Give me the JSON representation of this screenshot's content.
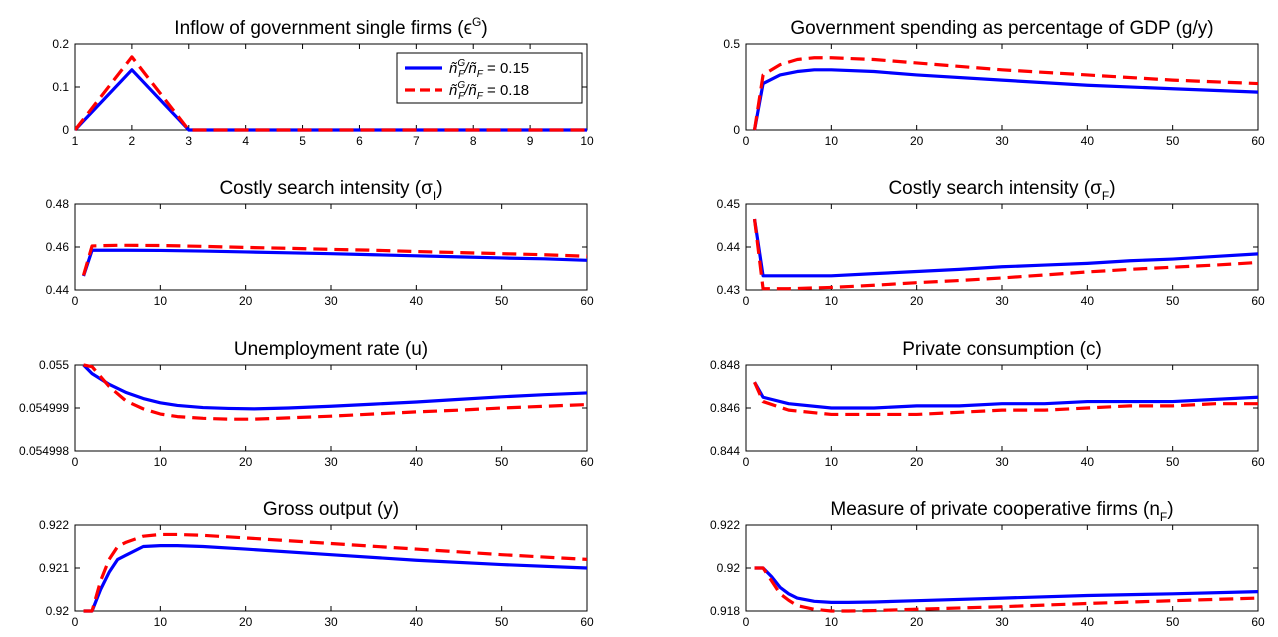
{
  "colors": {
    "series_1": "#0000FF",
    "series_2": "#FF0000",
    "axis": "#000000",
    "background": "#FFFFFF"
  },
  "legend": {
    "placement": "top-right of first panel",
    "entries": [
      {
        "label_base": "ñ",
        "label_sup": "G",
        "label_sub": "F",
        "label_mid": "/ñ",
        "label_sub2": "F",
        "label_tail": " = 0.15"
      },
      {
        "label_base": "ñ",
        "label_sup": "G",
        "label_sub": "F",
        "label_mid": "/ñ",
        "label_sub2": "F",
        "label_tail": " = 0.18"
      }
    ]
  },
  "chart_data": [
    {
      "type": "line",
      "title": "Inflow of government single firms (ϵ",
      "title_sup": "G",
      "title_end": ")",
      "xlim": [
        1,
        10
      ],
      "ylim": [
        0,
        0.2
      ],
      "xticks": [
        "1",
        "2",
        "3",
        "4",
        "5",
        "6",
        "7",
        "8",
        "9",
        "10"
      ],
      "yticks": [
        "0",
        "0.1",
        "0.2"
      ],
      "series": [
        {
          "name": "ñGF/ñF = 0.15",
          "x": [
            1,
            2,
            3,
            4,
            5,
            6,
            7,
            8,
            9,
            10
          ],
          "y": [
            0,
            0.14,
            0,
            0,
            0,
            0,
            0,
            0,
            0,
            0
          ]
        },
        {
          "name": "ñGF/ñF = 0.18",
          "x": [
            1,
            2,
            3,
            4,
            5,
            6,
            7,
            8,
            9,
            10
          ],
          "y": [
            0,
            0.17,
            0,
            0,
            0,
            0,
            0,
            0,
            0,
            0
          ]
        }
      ]
    },
    {
      "type": "line",
      "title": "Government spending as percentage of GDP (g/y)",
      "xlim": [
        0,
        60
      ],
      "ylim": [
        0,
        0.5
      ],
      "xticks": [
        "0",
        "10",
        "20",
        "30",
        "40",
        "50",
        "60"
      ],
      "yticks": [
        "0",
        "0.5"
      ],
      "series": [
        {
          "x": [
            1,
            2,
            4,
            6,
            8,
            10,
            15,
            20,
            30,
            40,
            50,
            60
          ],
          "y": [
            0,
            0.27,
            0.32,
            0.34,
            0.35,
            0.35,
            0.34,
            0.32,
            0.29,
            0.26,
            0.24,
            0.22
          ]
        },
        {
          "x": [
            1,
            2,
            4,
            6,
            8,
            10,
            15,
            20,
            30,
            40,
            50,
            60
          ],
          "y": [
            0,
            0.32,
            0.38,
            0.41,
            0.42,
            0.42,
            0.41,
            0.39,
            0.35,
            0.32,
            0.29,
            0.27
          ]
        }
      ]
    },
    {
      "type": "line",
      "title": "Costly search intensity (σ",
      "title_sub": "I",
      "title_end": ")",
      "xlim": [
        0,
        60
      ],
      "ylim": [
        0.44,
        0.48
      ],
      "xticks": [
        "0",
        "10",
        "20",
        "30",
        "40",
        "50",
        "60"
      ],
      "yticks": [
        "0.44",
        "0.46",
        "0.48"
      ],
      "series": [
        {
          "x": [
            1,
            2,
            5,
            10,
            15,
            20,
            25,
            30,
            35,
            40,
            45,
            50,
            55,
            60
          ],
          "y": [
            0.4465,
            0.4585,
            0.4585,
            0.4584,
            0.4581,
            0.4577,
            0.4573,
            0.4569,
            0.4564,
            0.4559,
            0.4554,
            0.4549,
            0.4545,
            0.4538
          ]
        },
        {
          "x": [
            1,
            2,
            5,
            10,
            15,
            20,
            25,
            30,
            35,
            40,
            45,
            50,
            55,
            60
          ],
          "y": [
            0.4468,
            0.4605,
            0.4608,
            0.4607,
            0.4603,
            0.4598,
            0.4594,
            0.4589,
            0.4585,
            0.4579,
            0.4574,
            0.4569,
            0.4564,
            0.4557
          ]
        }
      ]
    },
    {
      "type": "line",
      "title": "Costly search intensity (σ",
      "title_sub": "F",
      "title_end": ")",
      "xlim": [
        0,
        60
      ],
      "ylim": [
        0.43,
        0.45
      ],
      "xticks": [
        "0",
        "10",
        "20",
        "30",
        "40",
        "50",
        "60"
      ],
      "yticks": [
        "0.43",
        "0.44",
        "0.45"
      ],
      "series": [
        {
          "x": [
            1,
            2,
            5,
            10,
            15,
            20,
            25,
            30,
            35,
            40,
            45,
            50,
            55,
            60
          ],
          "y": [
            0.4465,
            0.4333,
            0.4333,
            0.4333,
            0.4338,
            0.4343,
            0.4348,
            0.4354,
            0.4358,
            0.4362,
            0.4368,
            0.4372,
            0.4378,
            0.4384
          ]
        },
        {
          "x": [
            1,
            2,
            5,
            10,
            15,
            20,
            25,
            30,
            35,
            40,
            45,
            50,
            55,
            60
          ],
          "y": [
            0.4465,
            0.4303,
            0.4303,
            0.4306,
            0.4311,
            0.4317,
            0.4322,
            0.4328,
            0.4335,
            0.4342,
            0.4348,
            0.4353,
            0.4358,
            0.4364
          ]
        }
      ]
    },
    {
      "type": "line",
      "title": "Unemployment rate (u)",
      "xlim": [
        0,
        60
      ],
      "ylim": [
        0.054998,
        0.055
      ],
      "xticks": [
        "0",
        "10",
        "20",
        "30",
        "40",
        "50",
        "60"
      ],
      "yticks": [
        "0.054998",
        "0.054999",
        "0.055"
      ],
      "series": [
        {
          "x": [
            1,
            2,
            4,
            6,
            8,
            10,
            12,
            15,
            18,
            21,
            25,
            30,
            35,
            40,
            45,
            50,
            55,
            60
          ],
          "y": [
            0.055,
            0.0549998,
            0.05499955,
            0.05499936,
            0.05499922,
            0.05499912,
            0.05499906,
            0.05499901,
            0.05499899,
            0.05499898,
            0.054999,
            0.05499904,
            0.05499909,
            0.05499914,
            0.0549992,
            0.05499926,
            0.05499931,
            0.05499935
          ]
        },
        {
          "x": [
            1,
            2,
            4,
            6,
            8,
            10,
            12,
            15,
            18,
            21,
            25,
            30,
            35,
            40,
            45,
            50,
            55,
            60
          ],
          "y": [
            0.055,
            0.05499996,
            0.0549995,
            0.05499916,
            0.05499898,
            0.05499886,
            0.0549988,
            0.05499876,
            0.05499874,
            0.05499874,
            0.05499877,
            0.05499881,
            0.05499886,
            0.05499891,
            0.05499895,
            0.054999,
            0.05499904,
            0.05499908
          ]
        }
      ]
    },
    {
      "type": "line",
      "title": "Private consumption (c)",
      "xlim": [
        0,
        60
      ],
      "ylim": [
        0.844,
        0.848
      ],
      "xticks": [
        "0",
        "10",
        "20",
        "30",
        "40",
        "50",
        "60"
      ],
      "yticks": [
        "0.844",
        "0.846",
        "0.848"
      ],
      "series": [
        {
          "x": [
            1,
            2,
            5,
            10,
            15,
            20,
            25,
            30,
            35,
            40,
            45,
            50,
            55,
            60
          ],
          "y": [
            0.8472,
            0.8465,
            0.8462,
            0.846,
            0.846,
            0.8461,
            0.8461,
            0.8462,
            0.8462,
            0.8463,
            0.8463,
            0.8463,
            0.8464,
            0.8465
          ]
        },
        {
          "x": [
            1,
            2,
            5,
            10,
            15,
            20,
            25,
            30,
            35,
            40,
            45,
            50,
            55,
            60
          ],
          "y": [
            0.8472,
            0.8463,
            0.8459,
            0.8457,
            0.8457,
            0.8457,
            0.8458,
            0.8459,
            0.8459,
            0.846,
            0.8461,
            0.8461,
            0.8462,
            0.8462
          ]
        }
      ]
    },
    {
      "type": "line",
      "title": "Gross output (y)",
      "xlim": [
        0,
        60
      ],
      "ylim": [
        0.92,
        0.922
      ],
      "xticks": [
        "0",
        "10",
        "20",
        "30",
        "40",
        "50",
        "60"
      ],
      "yticks": [
        "0.92",
        "0.921",
        "0.922"
      ],
      "series": [
        {
          "x": [
            1,
            2,
            3,
            4,
            5,
            6,
            8,
            10,
            12,
            15,
            20,
            30,
            40,
            50,
            60
          ],
          "y": [
            0.92,
            0.92,
            0.9205,
            0.9209,
            0.9212,
            0.9213,
            0.9215,
            0.92152,
            0.92152,
            0.9215,
            0.92144,
            0.92131,
            0.92118,
            0.92108,
            0.921
          ]
        },
        {
          "x": [
            1,
            2,
            3,
            4,
            5,
            6,
            8,
            10,
            12,
            15,
            20,
            30,
            40,
            50,
            60
          ],
          "y": [
            0.92,
            0.92,
            0.9207,
            0.9212,
            0.9215,
            0.9216,
            0.92174,
            0.92178,
            0.92178,
            0.92176,
            0.9217,
            0.92157,
            0.92144,
            0.92131,
            0.9212
          ]
        }
      ]
    },
    {
      "type": "line",
      "title": "Measure of private cooperative firms (n",
      "title_sub": "F",
      "title_end": ")",
      "xlim": [
        0,
        60
      ],
      "ylim": [
        0.918,
        0.922
      ],
      "xticks": [
        "0",
        "10",
        "20",
        "30",
        "40",
        "50",
        "60"
      ],
      "yticks": [
        "0.918",
        "0.92",
        "0.922"
      ],
      "series": [
        {
          "x": [
            1,
            2,
            3,
            4,
            5,
            6,
            8,
            10,
            12,
            15,
            20,
            30,
            40,
            50,
            60
          ],
          "y": [
            0.92,
            0.92,
            0.9196,
            0.9191,
            0.9188,
            0.9186,
            0.91845,
            0.9184,
            0.9184,
            0.91842,
            0.91848,
            0.9186,
            0.91872,
            0.9188,
            0.9189
          ]
        },
        {
          "x": [
            1,
            2,
            3,
            4,
            5,
            6,
            8,
            10,
            12,
            15,
            20,
            30,
            40,
            50,
            60
          ],
          "y": [
            0.92,
            0.92,
            0.9194,
            0.9188,
            0.9185,
            0.91825,
            0.91808,
            0.918,
            0.918,
            0.91802,
            0.91808,
            0.9182,
            0.91835,
            0.91848,
            0.9186
          ]
        }
      ]
    }
  ]
}
